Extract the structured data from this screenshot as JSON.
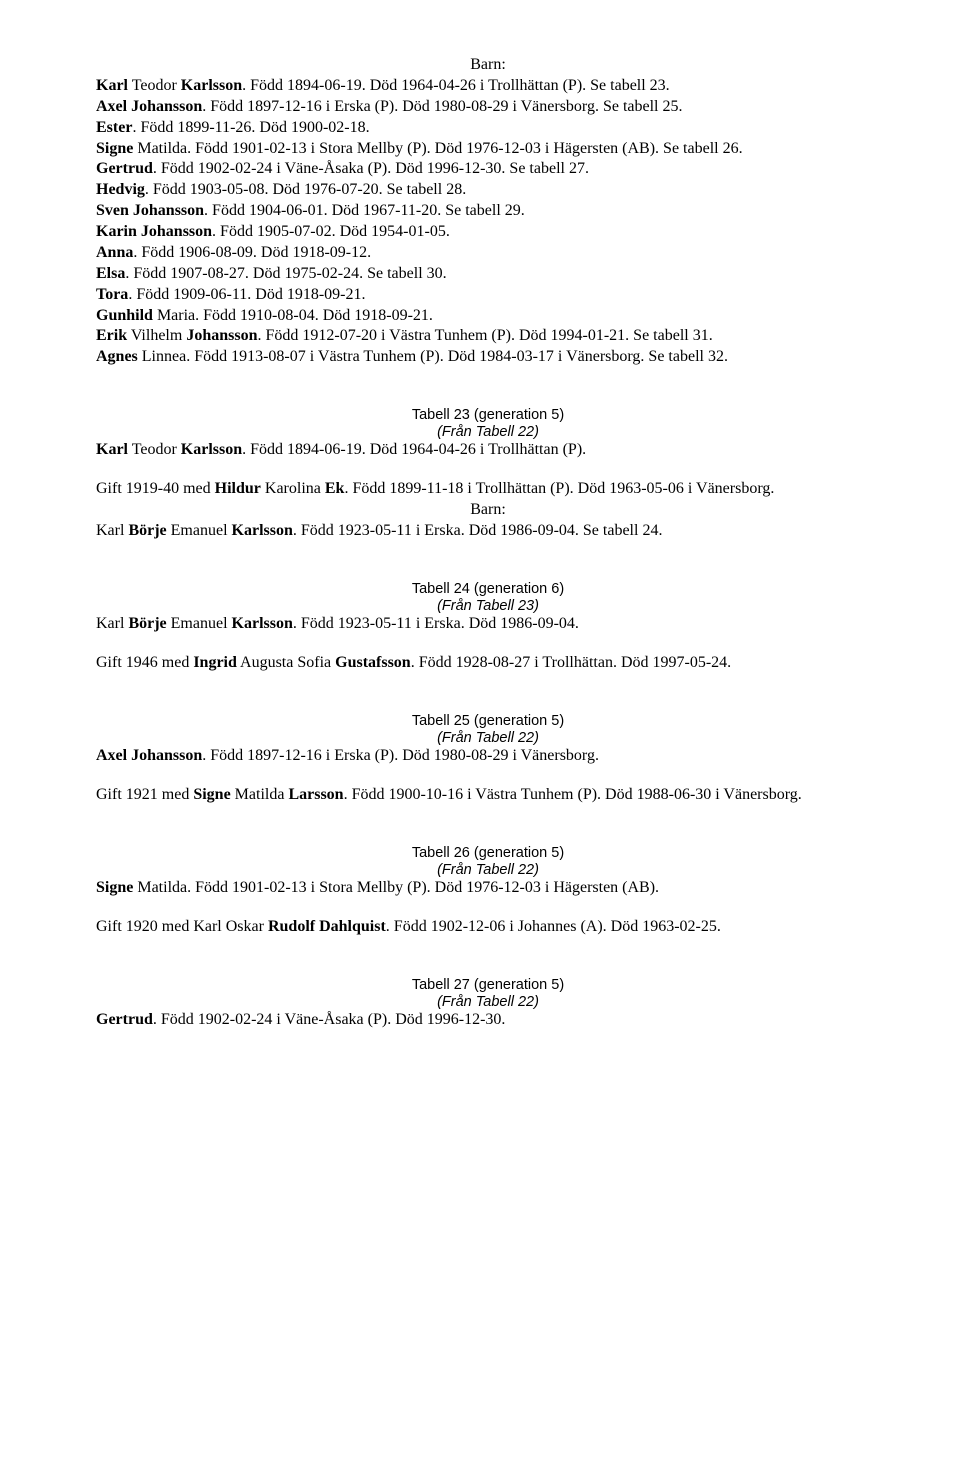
{
  "barn_label": "Barn:",
  "top_block": [
    {
      "html": "<b>Karl</b> Teodor <b>Karlsson</b>. Född 1894-06-19. Död 1964-04-26 i Trollhättan (P). Se tabell 23."
    },
    {
      "html": "<b>Axel Johansson</b>. Född 1897-12-16 i Erska (P). Död 1980-08-29 i Vänersborg. Se tabell 25."
    },
    {
      "html": "<b>Ester</b>. Född 1899-11-26. Död 1900-02-18."
    },
    {
      "html": "<b>Signe</b> Matilda. Född 1901-02-13 i Stora Mellby (P). Död 1976-12-03 i Hägersten (AB). Se tabell 26."
    },
    {
      "html": "<b>Gertrud</b>. Född 1902-02-24 i Väne-Åsaka (P). Död 1996-12-30. Se tabell 27."
    },
    {
      "html": "<b>Hedvig</b>. Född 1903-05-08. Död 1976-07-20. Se tabell 28."
    },
    {
      "html": "<b>Sven Johansson</b>. Född 1904-06-01. Död 1967-11-20. Se tabell 29."
    },
    {
      "html": "<b>Karin Johansson</b>. Född 1905-07-02. Död 1954-01-05."
    },
    {
      "html": "<b>Anna</b>. Född 1906-08-09. Död 1918-09-12."
    },
    {
      "html": "<b>Elsa</b>. Född 1907-08-27. Död 1975-02-24. Se tabell 30."
    },
    {
      "html": "<b>Tora</b>. Född 1909-06-11. Död 1918-09-21."
    },
    {
      "html": "<b>Gunhild</b> Maria. Född 1910-08-04. Död 1918-09-21."
    },
    {
      "html": "<b>Erik</b> Vilhelm <b>Johansson</b>. Född 1912-07-20 i Västra Tunhem (P). Död 1994-01-21. Se tabell 31."
    },
    {
      "html": "<b>Agnes</b> Linnea. Född 1913-08-07 i Västra Tunhem (P). Död 1984-03-17 i Vänersborg. Se tabell 32."
    }
  ],
  "sections": [
    {
      "title": "Tabell 23 (generation 5)",
      "from": "(Från Tabell 22)",
      "subject_html": "<b>Karl</b> Teodor <b>Karlsson</b>. Född 1894-06-19. Död 1964-04-26 i Trollhättan (P).",
      "gift_html": "Gift 1919-40 med <b>Hildur</b> Karolina <b>Ek</b>. Född 1899-11-18 i Trollhättan (P). Död 1963-05-06 i Vänersborg.",
      "barn": true,
      "children": [
        {
          "html": "Karl <b>Börje</b> Emanuel <b>Karlsson</b>. Född 1923-05-11 i Erska. Död 1986-09-04. Se tabell 24."
        }
      ]
    },
    {
      "title": "Tabell 24 (generation 6)",
      "from": "(Från Tabell 23)",
      "subject_html": "Karl <b>Börje</b> Emanuel <b>Karlsson</b>. Född 1923-05-11 i Erska. Död 1986-09-04.",
      "gift_html": "Gift 1946 med <b>Ingrid</b> Augusta Sofia <b>Gustafsson</b>. Född 1928-08-27 i Trollhättan. Död 1997-05-24.",
      "barn": false,
      "children": []
    },
    {
      "title": "Tabell 25 (generation 5)",
      "from": "(Från Tabell 22)",
      "subject_html": "<b>Axel Johansson</b>. Född 1897-12-16 i Erska (P). Död 1980-08-29 i Vänersborg.",
      "gift_html": "Gift 1921 med <b>Signe</b> Matilda <b>Larsson</b>. Född 1900-10-16 i Västra Tunhem (P). Död 1988-06-30 i Vänersborg.",
      "barn": false,
      "children": []
    },
    {
      "title": "Tabell 26 (generation 5)",
      "from": "(Från Tabell 22)",
      "subject_html": "<b>Signe</b> Matilda. Född 1901-02-13 i Stora Mellby (P). Död 1976-12-03 i Hägersten (AB).",
      "gift_html": "Gift 1920 med Karl Oskar <b>Rudolf Dahlquist</b>. Född 1902-12-06 i Johannes (A). Död 1963-02-25.",
      "barn": false,
      "children": []
    },
    {
      "title": "Tabell 27 (generation 5)",
      "from": "(Från Tabell 22)",
      "subject_html": "<b>Gertrud</b>. Född 1902-02-24 i Väne-Åsaka (P). Död 1996-12-30.",
      "gift_html": "",
      "barn": false,
      "children": []
    }
  ]
}
